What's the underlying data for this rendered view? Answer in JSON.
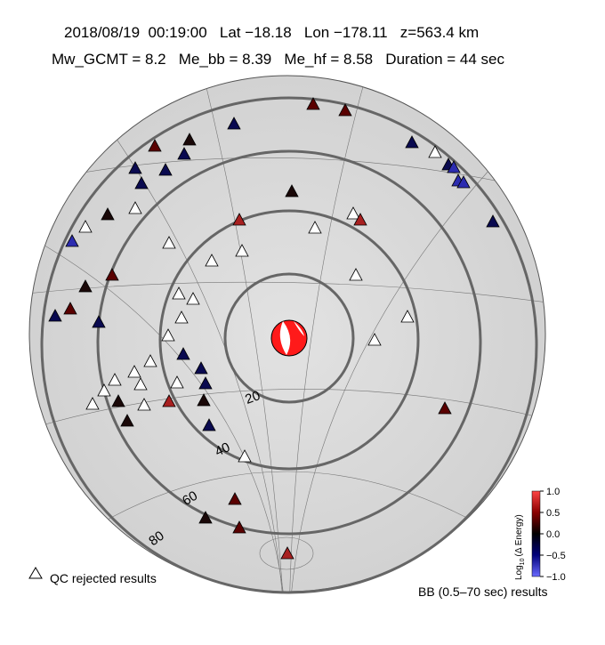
{
  "header": {
    "line1": "2018/08/19  00:19:00   Lat −18.18   Lon −178.11   z=563.4 km",
    "line2": "Mw_GCMT = 8.2   Me_bb = 8.39   Me_hf = 8.58   Duration = 44 sec"
  },
  "map": {
    "ring_labels": [
      "20",
      "40",
      "60",
      "80"
    ]
  },
  "legend": {
    "qc": "QC rejected results",
    "bb": "BB (0.5–70 sec) results"
  },
  "colorbar": {
    "label_parts": [
      "Log",
      "10",
      "(Δ Energy)"
    ],
    "ticks": [
      "1.0",
      "0.5",
      "0.0",
      "−0.5",
      "−1.0"
    ]
  }
}
